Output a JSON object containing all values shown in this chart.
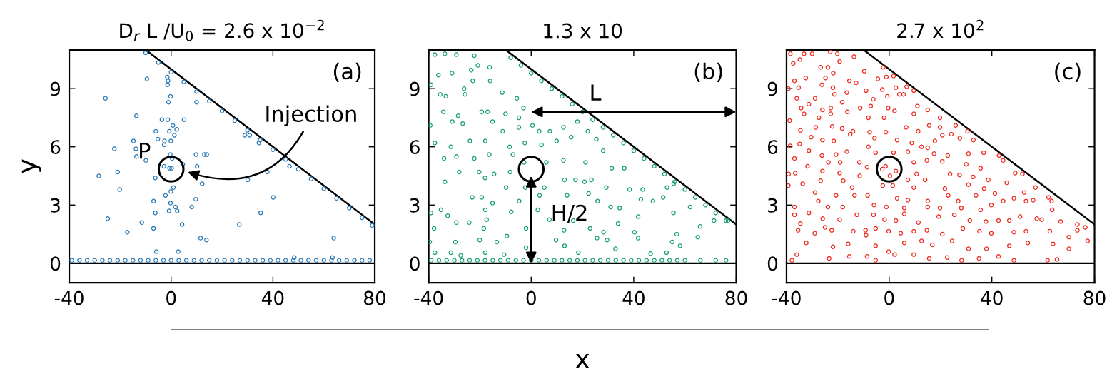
{
  "chart_data": [
    {
      "type": "scatter",
      "title": "D$_{r}$ L /U$_{0}$ = 2.6 x 10$^{−2}$",
      "ylabel": "y",
      "xlim": [
        -40,
        80
      ],
      "ylim": [
        -1,
        11
      ],
      "xticks": [
        -40,
        0,
        40,
        80
      ],
      "yticks": [
        0,
        3,
        6,
        9
      ],
      "ref_lines": [
        {
          "axis": "y",
          "value": 0,
          "color": "#000000"
        }
      ],
      "annotations": [
        "(a)",
        "P",
        "Injection"
      ],
      "series": [
        {
          "marker": "circle",
          "color": "#2a7ab8",
          "x": [
            -9.5,
            -25.8,
            -13.6,
            -3.6,
            -1.3,
            5.1,
            -1.5,
            -1.2,
            -1.4,
            -0.2,
            -1.0,
            10.0,
            -6.0,
            -0.7,
            0.7,
            2.2,
            1.3,
            -5.2,
            -2.6,
            -2.7,
            -0.1,
            -14.8,
            -22.3,
            -13.8,
            -13.6,
            -9.9,
            -0.3,
            0.4,
            9.8,
            13.1,
            14.0,
            -2.8,
            -0.6,
            0.2,
            10.2,
            4.6,
            -28.4,
            -21.0,
            -6.2,
            -20.2,
            0.9,
            12.2,
            -0.1,
            -2.2,
            -6.9,
            -0.2,
            9.7,
            1.7,
            2.4,
            8.1,
            -0.8,
            -6.2,
            -24.9,
            -11.5,
            4.3,
            -6.9,
            -17.2,
            11.6,
            13.9,
            -5.8,
            2.8,
            30.1,
            37.8,
            40.1,
            35.2,
            26.8,
            63.9,
            29.0,
            30.9,
            34.5,
            46.5,
            48.4,
            63.4,
            -10,
            -5,
            0,
            5,
            10,
            15,
            20,
            25,
            30,
            35,
            40,
            45,
            50,
            55,
            60,
            65,
            70,
            75,
            79,
            -39,
            -36,
            -33,
            -30,
            -27,
            -24,
            -21,
            -18,
            -15,
            -12,
            -9,
            -6,
            -3,
            0,
            3,
            6,
            9,
            12,
            15,
            18,
            21,
            24,
            27,
            30,
            33,
            36,
            39,
            42,
            45,
            48,
            51,
            54,
            57,
            60,
            63,
            66,
            69,
            72,
            75,
            78
          ],
          "values": [
            9.5,
            8.5,
            7.6,
            7.4,
            7.4,
            7.4,
            9.6,
            9.4,
            9.2,
            8.6,
            8.3,
            8.3,
            6.8,
            6.8,
            7.1,
            6.9,
            6.6,
            6.4,
            6.3,
            6.1,
            6.3,
            6.3,
            5.9,
            5.9,
            5.5,
            5.3,
            5.6,
            5.4,
            5.6,
            5.6,
            5.6,
            5.0,
            4.9,
            4.9,
            5.0,
            5.1,
            4.5,
            4.7,
            4.4,
            3.8,
            3.9,
            4.1,
            3.7,
            3.5,
            3.2,
            3.1,
            3.3,
            2.9,
            2.7,
            2.9,
            2.7,
            2.6,
            2.3,
            2.1,
            2.0,
            1.8,
            1.6,
            1.3,
            1.2,
            0.6,
            0.6,
            4.3,
            4.7,
            3.4,
            2.6,
            2.0,
            1.3,
            6.6,
            6.6,
            6.2,
            5.0,
            0.3,
            0.3,
            10.85,
            10.35,
            9.85,
            9.35,
            8.85,
            8.35,
            7.85,
            7.35,
            6.85,
            6.35,
            5.85,
            5.35,
            4.85,
            4.35,
            3.85,
            3.35,
            2.85,
            2.35,
            1.95,
            0.15,
            0.15,
            0.15,
            0.15,
            0.15,
            0.15,
            0.15,
            0.15,
            0.15,
            0.15,
            0.15,
            0.15,
            0.15,
            0.15,
            0.15,
            0.15,
            0.15,
            0.15,
            0.15,
            0.15,
            0.15,
            0.15,
            0.15,
            0.15,
            0.15,
            0.15,
            0.15,
            0.15,
            0.15,
            0.15,
            0.15,
            0.15,
            0.15,
            0.15,
            0.15,
            0.15,
            0.15,
            0.15,
            0.15,
            0.15
          ]
        },
        {
          "type": "line",
          "color": "#000000",
          "x": [
            -10,
            80
          ],
          "values": [
            11,
            2
          ]
        },
        {
          "type": "scatter",
          "color": "#000000",
          "x": [
            0
          ],
          "values": [
            4.85
          ]
        }
      ]
    },
    {
      "type": "scatter",
      "title": "1.3 x 10",
      "xlabel": "x",
      "xlim": [
        -40,
        80
      ],
      "ylim": [
        -1,
        11
      ],
      "xticks": [
        -40,
        0,
        40,
        80
      ],
      "yticks": [
        0,
        3,
        6,
        9
      ],
      "ref_lines": [
        {
          "axis": "y",
          "value": 0,
          "color": "#000000"
        }
      ],
      "annotations": [
        "(b)",
        "L",
        "H/2"
      ],
      "series": [
        {
          "marker": "circle",
          "color": "#16a06e",
          "x": [
            -37.6,
            -33.7,
            -29.2,
            -22.2,
            -36.2,
            -30.9,
            -39.1,
            -26.2,
            -23.4,
            -20.8,
            -16.2,
            -35.5,
            -33.3,
            -25.8,
            -22.8,
            -16.0,
            -11.3,
            -5.6,
            -34.3,
            -28.5,
            -19.3,
            -17.0,
            -10.0,
            -4.8,
            -3.0,
            -39.4,
            -30.8,
            -26.7,
            -15.1,
            -11.1,
            -4.8,
            0.5,
            3.1,
            7.3,
            12.6,
            -37.6,
            -31.3,
            -23.9,
            -17.9,
            -8.4,
            -2.5,
            4.0,
            9.9,
            15.6,
            18.0,
            22.1,
            25.4,
            -34.0,
            -29.2,
            -22.2,
            -16.4,
            -7.1,
            -2.8,
            5.9,
            12.6,
            21.2,
            28.1,
            31.4,
            36.3,
            -28.1,
            -20.3,
            -14.5,
            -8.2,
            -33.7,
            -18.0,
            -9.8,
            -2.3,
            5.1,
            13.0,
            17.3,
            20.8,
            23.5,
            29.3,
            38.4,
            43.5,
            53.0,
            55.6,
            -23.0,
            -19.3,
            -15.1,
            -4.7,
            3.3,
            14.0,
            22.4,
            25.9,
            31.0,
            34.5,
            42.8,
            47.5,
            51.5,
            62.0,
            -39.1,
            -35.2,
            -32.6,
            -17.9,
            -17.4,
            -7.8,
            2.6,
            7.1,
            16.4,
            23.0,
            33.9,
            41.7,
            55.5,
            65.9,
            71.3,
            76.8,
            -37.9,
            -29.2,
            -24.2,
            -18.5,
            -2.0,
            12.8,
            28.2,
            40.3,
            56.8,
            -39.6,
            -29.6,
            -20.1,
            -13.4,
            -9.5,
            9.7,
            13.0,
            25.7,
            29.6,
            41.7,
            55.0,
            65.0,
            58.1,
            -37.6,
            -31.3,
            -27.5,
            -17.9,
            -10.6,
            -2.0,
            18.4,
            32.9,
            46.6,
            52.8,
            -8,
            -4,
            0,
            4,
            8,
            12,
            16,
            20,
            24,
            28,
            32,
            36,
            40,
            44,
            48,
            52,
            56,
            60,
            64,
            68,
            72,
            76,
            -39,
            -36,
            -33,
            -30,
            -27,
            -24,
            -21,
            -18,
            -15,
            -12,
            -9,
            -6,
            -3,
            0,
            3,
            6,
            9,
            12,
            15,
            18,
            21,
            24,
            27,
            30,
            33,
            36,
            39,
            42,
            45,
            48,
            51,
            54,
            57,
            60,
            66,
            72,
            76
          ],
          "values": [
            10.75,
            10.8,
            10.75,
            10.7,
            9.7,
            9.8,
            9.2,
            9.0,
            9.95,
            10.2,
            10.1,
            8.7,
            8.6,
            8.7,
            9.4,
            9.4,
            8.8,
            8.5,
            7.8,
            7.6,
            7.8,
            7.8,
            7.7,
            7.5,
            8.0,
            7.1,
            7.3,
            7.2,
            7.3,
            6.8,
            7.0,
            7.1,
            6.8,
            6.8,
            7.0,
            6.2,
            6.0,
            6.3,
            6.3,
            6.0,
            6.2,
            6.1,
            6.3,
            6.5,
            7.3,
            6.8,
            6.4,
            5.4,
            5.5,
            5.4,
            5.6,
            5.6,
            5.2,
            5.2,
            5.3,
            5.2,
            5.8,
            4.9,
            4.9,
            4.7,
            4.7,
            4.6,
            4.7,
            4.2,
            4.4,
            3.9,
            3.9,
            3.9,
            4.3,
            4.3,
            4.2,
            4.3,
            3.9,
            3.8,
            3.8,
            3.9,
            4.1,
            3.4,
            3.4,
            3.1,
            3.2,
            3.5,
            3.5,
            3.6,
            3.2,
            2.9,
            2.85,
            3.3,
            3.2,
            3.4,
            2.9,
            2.6,
            2.75,
            2.45,
            2.75,
            2.25,
            2.65,
            2.75,
            2.25,
            2.2,
            1.8,
            2.05,
            2.4,
            2.6,
            1.9,
            2.2,
            2.2,
            1.8,
            2.1,
            2.1,
            1.8,
            1.8,
            1.7,
            1.6,
            1.6,
            1.5,
            1.1,
            1.1,
            1.2,
            1.1,
            1.4,
            1.2,
            0.9,
            1.3,
            1.2,
            1.3,
            1.1,
            1.35,
            0.9,
            0.55,
            0.55,
            0.4,
            0.55,
            0.45,
            0.8,
            0.55,
            0.75,
            0.5,
            0.55,
            10.6,
            10.2,
            9.8,
            9.4,
            9.0,
            8.6,
            8.2,
            7.8,
            7.4,
            7.0,
            6.6,
            6.2,
            5.8,
            5.4,
            5.0,
            4.6,
            4.2,
            3.8,
            3.4,
            3.0,
            2.6,
            2.2,
            0.15,
            0.15,
            0.15,
            0.15,
            0.15,
            0.15,
            0.15,
            0.15,
            0.15,
            0.15,
            0.15,
            0.15,
            0.15,
            0.15,
            0.15,
            0.15,
            0.15,
            0.15,
            0.15,
            0.15,
            0.15,
            0.15,
            0.15,
            0.15,
            0.15,
            0.15,
            0.15,
            0.15,
            0.15,
            0.15,
            0.15,
            0.15,
            0.15,
            0.15,
            0.15,
            0.15,
            0.15
          ]
        },
        {
          "type": "line",
          "color": "#000000",
          "x": [
            -10,
            80
          ],
          "values": [
            11,
            2
          ]
        },
        {
          "type": "scatter",
          "color": "#000000",
          "x": [
            0
          ],
          "values": [
            4.85
          ]
        }
      ]
    },
    {
      "type": "scatter",
      "title": "2.7 x 10$^{2}$",
      "xlim": [
        -40,
        80
      ],
      "ylim": [
        -1,
        11
      ],
      "xticks": [
        -40,
        0,
        40,
        80
      ],
      "yticks": [
        0,
        3,
        6,
        9
      ],
      "ref_lines": [
        {
          "axis": "y",
          "value": 0,
          "color": "#000000"
        }
      ],
      "annotations": [
        "(c)"
      ],
      "series": [
        {
          "marker": "circle",
          "color": "#ee2a1e",
          "x": [
            -38.5,
            -33.2,
            -30.0,
            -23.0,
            -20.2,
            -13.7,
            -37.4,
            -34.8,
            -26.7,
            -23.9,
            -21.8,
            -19.3,
            -9.7,
            -2.3,
            1.7,
            -1.1,
            -36.9,
            -32.5,
            -24.8,
            -15.5,
            -12.9,
            -4.4,
            6.8,
            -39.3,
            -35.3,
            -26.2,
            -21.9,
            -9.0,
            -2.7,
            2.6,
            5.6,
            -36.0,
            -28.9,
            -21.3,
            -16.5,
            -6.2,
            -0.7,
            4.0,
            9.6,
            -34.3,
            -31.3,
            -26.0,
            -22.8,
            -18.3,
            -11.3,
            -7.2,
            -0.4,
            11.0,
            15.0,
            -38.8,
            -33.2,
            -27.4,
            -22.8,
            -16.3,
            -8.1,
            -2.0,
            2.1,
            9.6,
            19.8,
            -34.6,
            -28.6,
            -22.2,
            -18.3,
            -14.1,
            -7.6,
            -1.3,
            6.6,
            11.3,
            15.6,
            19.8,
            25.9,
            30.5,
            -30.4,
            -26.0,
            -21.6,
            -15.2,
            -5.7,
            3.1,
            8.8,
            12.6,
            17.8,
            20.7,
            24.2,
            27.5,
            32.8,
            -38.6,
            -34.9,
            -31.3,
            -26.2,
            -20.7,
            -16.5,
            -8.1,
            -5.3,
            1.7,
            7.3,
            15.0,
            17.5,
            22.8,
            30.9,
            36.8,
            42.8,
            -36.9,
            -31.8,
            -23.7,
            -19.1,
            -11.6,
            -8.6,
            9.6,
            14.7,
            20.7,
            30.0,
            35.6,
            44.4,
            -39.2,
            -36.6,
            -26.0,
            -19.3,
            -11.5,
            -2.7,
            -1.4,
            2.6,
            0.3,
            7.3,
            10.7,
            23.7,
            27.4,
            32.7,
            38.6,
            49.1,
            51.9,
            -39.3,
            -33.7,
            -26.7,
            -17.9,
            -14.4,
            -2.5,
            1.4,
            9.6,
            14.0,
            21.7,
            30.9,
            37.0,
            45.8,
            57.0,
            62.1,
            -28.9,
            -20.7,
            -13.5,
            -8.4,
            3.1,
            7.3,
            15.0,
            23.0,
            26.9,
            33.8,
            41.2,
            44.4,
            48.6,
            52.6,
            56.1,
            63.3,
            -36.9,
            -27.6,
            -23.9,
            -18.1,
            -5.9,
            -1.1,
            5.9,
            15.0,
            19.8,
            28.1,
            35.6,
            39.8,
            53.3,
            63.5,
            -36.9,
            -31.3,
            -25.9,
            -19.3,
            -12.6,
            -6.1,
            -1.8,
            2.6,
            5.9,
            11.4,
            19.3,
            25.4,
            31.4,
            37.7,
            42.6,
            46.8,
            51.0,
            57.5,
            59.4,
            66.8,
            73.3,
            -35.5,
            -34.6,
            -25.0,
            -22.4,
            -14.0,
            -9.2,
            -5.3,
            -0.2,
            4.5,
            9.6,
            14.7,
            20.7,
            28.7,
            35.2,
            39.8,
            48.6,
            53.3,
            62.6,
            70.0,
            73.3,
            76.4,
            -32.3,
            -29.0,
            -21.9,
            -16.0,
            -9.0,
            -5.3,
            -0.2,
            5.9,
            12.6,
            16.8,
            24.5,
            30.9,
            37.9,
            46.8,
            54.0,
            63.8,
            70.0,
            77.3,
            -37.9,
            -36.0,
            -23.4,
            -15.5,
            -8.6,
            -5.3,
            2.1,
            9.6,
            15.6,
            22.6,
            28.2,
            35.0,
            42.6,
            48.6,
            61.7,
            65.4
          ],
          "values": [
            10.8,
            10.8,
            10.8,
            10.9,
            10.8,
            10.65,
            10.3,
            10.5,
            10.1,
            10.1,
            9.8,
            10.4,
            9.9,
            10.1,
            9.65,
            9.6,
            9.4,
            9.55,
            9.55,
            9.4,
            9.3,
            9.5,
            9.1,
            9.0,
            9.05,
            9.2,
            9.05,
            8.9,
            8.95,
            9.05,
            8.7,
            8.5,
            8.5,
            8.7,
            8.8,
            8.45,
            8.6,
            8.7,
            8.9,
            8.0,
            8.2,
            7.9,
            8.0,
            8.3,
            8.0,
            8.1,
            8.0,
            8.1,
            7.9,
            7.35,
            7.7,
            7.5,
            7.7,
            7.8,
            7.5,
            7.5,
            7.85,
            7.7,
            7.5,
            6.85,
            7.0,
            7.05,
            6.95,
            6.8,
            6.75,
            6.75,
            7.0,
            6.8,
            7.1,
            7.0,
            7.1,
            6.8,
            6.5,
            6.35,
            6.3,
            6.65,
            6.45,
            6.35,
            6.2,
            6.0,
            6.3,
            6.6,
            6.65,
            6.45,
            6.35,
            6.05,
            6.15,
            5.8,
            5.55,
            5.6,
            5.75,
            6.0,
            5.7,
            5.7,
            5.75,
            5.95,
            5.65,
            5.55,
            5.65,
            5.7,
            5.55,
            5.4,
            5.0,
            5.2,
            5.2,
            5.2,
            4.95,
            5.2,
            5.3,
            5.25,
            5.1,
            4.9,
            5.3,
            4.6,
            4.65,
            4.75,
            4.65,
            4.5,
            4.85,
            5.0,
            4.75,
            4.5,
            4.3,
            4.6,
            4.6,
            4.55,
            4.45,
            4.3,
            4.65,
            4.6,
            4.0,
            4.1,
            4.25,
            4.25,
            3.9,
            4.0,
            4.0,
            3.9,
            4.3,
            3.85,
            4.05,
            3.85,
            4.15,
            3.9,
            3.4,
            3.65,
            3.5,
            3.5,
            3.5,
            3.35,
            3.25,
            3.2,
            3.5,
            3.2,
            3.5,
            3.6,
            3.2,
            3.35,
            3.65,
            3.25,
            3.2,
            2.9,
            3.2,
            2.9,
            2.9,
            3.0,
            2.9,
            2.85,
            2.9,
            2.85,
            2.85,
            2.75,
            3.0,
            3.2,
            2.75,
            2.5,
            2.6,
            2.3,
            2.25,
            2.5,
            2.5,
            2.25,
            2.2,
            2.55,
            2.1,
            2.4,
            2.5,
            2.2,
            2.15,
            2.2,
            2.2,
            2.4,
            2.3,
            2.25,
            2.15,
            2.0,
            1.7,
            2.05,
            1.85,
            1.7,
            1.65,
            1.7,
            1.8,
            1.65,
            1.55,
            1.65,
            1.7,
            1.5,
            1.8,
            1.65,
            1.55,
            1.6,
            1.65,
            1.65,
            1.35,
            1.7,
            1.85,
            1.05,
            1.55,
            0.85,
            1.0,
            1.45,
            0.9,
            0.6,
            1.05,
            1.15,
            0.95,
            1.15,
            0.75,
            0.75,
            0.9,
            1.05,
            1.0,
            0.75,
            1.15,
            0.15,
            0.45,
            0.25,
            0.35,
            0.35,
            0.15,
            0.45,
            0.45,
            0.25,
            0.3,
            0.15,
            0.25,
            0.35,
            0.15,
            0.15,
            0.2
          ]
        },
        {
          "type": "line",
          "color": "#000000",
          "x": [
            -10,
            80
          ],
          "values": [
            11,
            2
          ]
        },
        {
          "type": "scatter",
          "color": "#000000",
          "x": [
            0
          ],
          "values": [
            4.85
          ]
        }
      ]
    }
  ]
}
